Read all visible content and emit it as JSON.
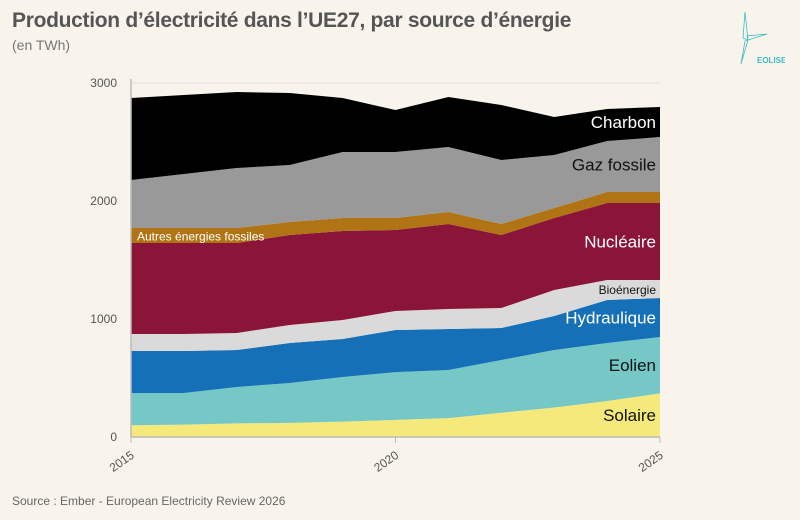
{
  "header": {
    "title": "Production d’électricité dans l’UE27, par source d’énergie",
    "subtitle": "(en TWh)"
  },
  "footer": {
    "source": "Source : Ember - European Electricity Review 2026"
  },
  "logo": {
    "text": "EOLISE",
    "icon": "wind-turbine-icon",
    "color": "#3bbcc4"
  },
  "chart_data": {
    "type": "area",
    "stacked": true,
    "title": "Production d’électricité dans l’UE27, par source d’énergie",
    "ylabel": "(en TWh)",
    "x": [
      2015,
      2016,
      2017,
      2018,
      2019,
      2020,
      2021,
      2022,
      2023,
      2024,
      2025
    ],
    "xticks": [
      "2015",
      "2020",
      "2025"
    ],
    "yticks": [
      "0",
      "1000",
      "2000",
      "3000"
    ],
    "ylim": [
      0,
      3000
    ],
    "grid": true,
    "series": [
      {
        "name": "Solaire",
        "color": "#f5e97c",
        "label_color": "#111",
        "values": [
          100,
          105,
          115,
          120,
          130,
          145,
          160,
          205,
          250,
          305,
          370
        ]
      },
      {
        "name": "Eolien",
        "color": "#76c8c6",
        "label_color": "#111",
        "values": [
          273,
          268,
          309,
          338,
          378,
          405,
          408,
          448,
          487,
          492,
          477
        ]
      },
      {
        "name": "Hydraulique",
        "color": "#1570b8",
        "label_color": "#fff",
        "values": [
          356,
          356,
          313,
          339,
          322,
          357,
          347,
          271,
          288,
          364,
          331
        ]
      },
      {
        "name": "Bioénergie",
        "color": "#dadada",
        "label_color": "#111",
        "values": [
          144,
          144,
          144,
          152,
          162,
          161,
          170,
          169,
          221,
          170,
          153
        ]
      },
      {
        "name": "Nucléaire",
        "color": "#8b1538",
        "label_color": "#fff",
        "values": [
          771,
          771,
          763,
          763,
          754,
          686,
          720,
          619,
          610,
          652,
          652
        ]
      },
      {
        "name": "Autres énergies fossiles",
        "color": "#b07415",
        "label_color": "#fff",
        "values": [
          127,
          127,
          127,
          110,
          110,
          102,
          102,
          93,
          85,
          93,
          93
        ]
      },
      {
        "name": "Gaz fossile",
        "color": "#999999",
        "label_color": "#111",
        "values": [
          407,
          458,
          509,
          483,
          559,
          559,
          551,
          542,
          449,
          432,
          466
        ]
      },
      {
        "name": "Charbon",
        "color": "#000000",
        "label_color": "#fff",
        "values": [
          695,
          669,
          644,
          610,
          458,
          356,
          423,
          467,
          322,
          272,
          255
        ]
      }
    ]
  }
}
